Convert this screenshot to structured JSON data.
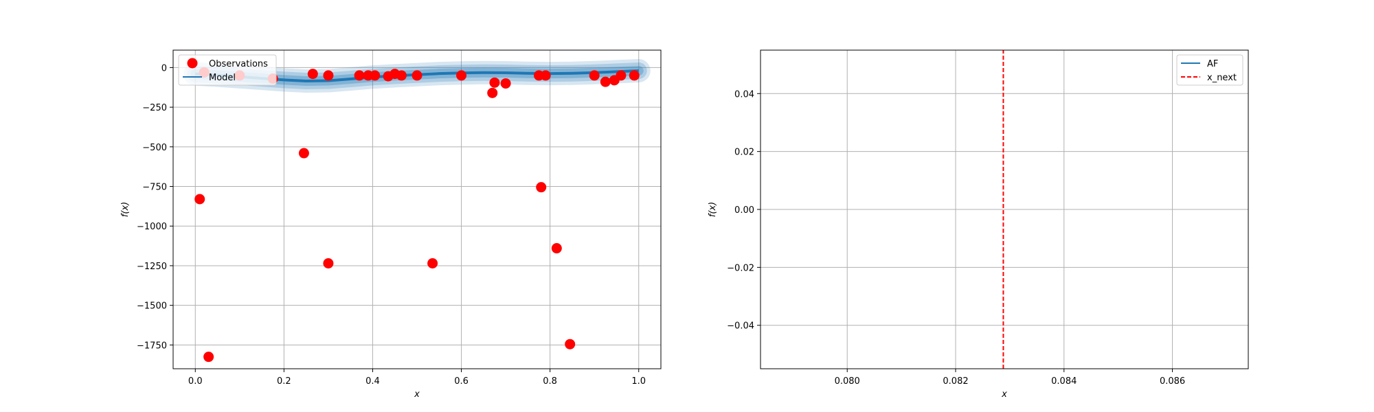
{
  "chart_data": [
    {
      "type": "scatter",
      "title": "",
      "xlabel": "x",
      "ylabel": "f(x)",
      "xlim": [
        -0.05,
        1.05
      ],
      "ylim": [
        -1900,
        110
      ],
      "xticks": [
        0.0,
        0.2,
        0.4,
        0.6,
        0.8,
        1.0
      ],
      "xtick_labels": [
        "0.0",
        "0.2",
        "0.4",
        "0.6",
        "0.8",
        "1.0"
      ],
      "yticks": [
        0,
        -250,
        -500,
        -750,
        -1000,
        -1250,
        -1500,
        -1750
      ],
      "ytick_labels": [
        "0",
        "−250",
        "−500",
        "−750",
        "−1000",
        "−1250",
        "−1500",
        "−1750"
      ],
      "grid": true,
      "legend": {
        "placement": "top-left",
        "entries": [
          "Observations",
          "Model"
        ]
      },
      "colors": {
        "observations": "#ff0000",
        "model": "#1f77b4"
      },
      "series": [
        {
          "name": "Observations",
          "x": [
            0.01,
            0.02,
            0.03,
            0.1,
            0.175,
            0.245,
            0.265,
            0.3,
            0.3,
            0.37,
            0.39,
            0.405,
            0.435,
            0.45,
            0.465,
            0.5,
            0.535,
            0.6,
            0.67,
            0.675,
            0.7,
            0.775,
            0.78,
            0.79,
            0.815,
            0.845,
            0.9,
            0.925,
            0.945,
            0.96,
            0.99
          ],
          "y": [
            -830,
            -30,
            -1825,
            -50,
            -70,
            -540,
            -40,
            -1235,
            -50,
            -50,
            -50,
            -50,
            -55,
            -40,
            -50,
            -50,
            -1235,
            -50,
            -160,
            -95,
            -100,
            -50,
            -755,
            -50,
            -1140,
            -1745,
            -50,
            -90,
            -80,
            -50,
            -50
          ]
        },
        {
          "name": "Model",
          "x": [
            0.0,
            0.05,
            0.1,
            0.15,
            0.2,
            0.25,
            0.3,
            0.35,
            0.4,
            0.45,
            0.5,
            0.55,
            0.6,
            0.65,
            0.7,
            0.75,
            0.8,
            0.85,
            0.9,
            0.95,
            1.0
          ],
          "y": [
            -40,
            -48,
            -58,
            -68,
            -78,
            -85,
            -83,
            -72,
            -60,
            -52,
            -45,
            -38,
            -34,
            -32,
            -33,
            -36,
            -38,
            -36,
            -32,
            -26,
            -20
          ]
        }
      ]
    },
    {
      "type": "line",
      "title": "",
      "xlabel": "x",
      "ylabel": "f(x)",
      "xlim": [
        0.0784,
        0.0874
      ],
      "ylim": [
        -0.055,
        0.055
      ],
      "xticks": [
        0.08,
        0.082,
        0.084,
        0.086
      ],
      "xtick_labels": [
        "0.080",
        "0.082",
        "0.084",
        "0.086"
      ],
      "yticks": [
        0.04,
        0.02,
        0.0,
        -0.02,
        -0.04
      ],
      "ytick_labels": [
        "0.04",
        "0.02",
        "0.00",
        "−0.02",
        "−0.04"
      ],
      "grid": true,
      "legend": {
        "placement": "top-right",
        "entries": [
          "AF",
          "x_next"
        ]
      },
      "colors": {
        "af": "#1f77b4",
        "x_next": "#ff0000"
      },
      "series": [
        {
          "name": "AF",
          "x": [],
          "y": []
        },
        {
          "name": "x_next",
          "x": [
            0.08288,
            0.08288
          ],
          "y": [
            -0.055,
            0.055
          ]
        }
      ]
    }
  ]
}
